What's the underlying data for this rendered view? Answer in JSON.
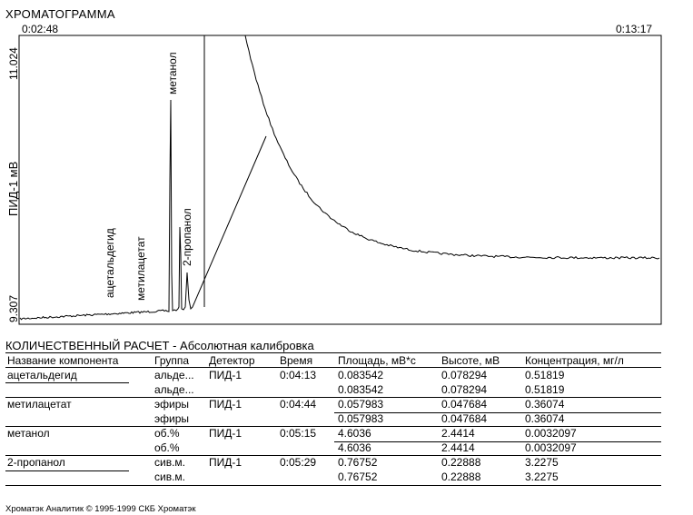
{
  "header": {
    "title": "ХРОМАТОГРАММА",
    "time_start": "0:02:48",
    "time_end": "0:13:17"
  },
  "chart_data": {
    "type": "line",
    "ylabel": "ПИД-1 мВ",
    "ylim": [
      "9.307",
      "11.024"
    ],
    "x_range": [
      "0:02:48",
      "0:13:17"
    ],
    "peak_labels": [
      "ацетальдегид",
      "метилацетат",
      "метанол",
      "2-пропанол"
    ]
  },
  "section": {
    "title": "КОЛИЧЕСТВЕННЫЙ РАСЧЕТ - Абсолютная калибровка"
  },
  "table": {
    "headers": [
      "Название компонента",
      "Группа",
      "Детектор",
      "Время",
      "Площадь, мВ*с",
      "Высоте, мВ",
      "Концентрация, мг/л"
    ],
    "rows": [
      [
        "ацетальдегид",
        "альде...",
        "ПИД-1",
        "0:04:13",
        "0.083542",
        "0.078294",
        "0.51819"
      ],
      [
        "",
        "альде...",
        "",
        "",
        "0.083542",
        "0.078294",
        "0.51819"
      ],
      [
        "метилацетат",
        "эфиры",
        "ПИД-1",
        "0:04:44",
        "0.057983",
        "0.047684",
        "0.36074"
      ],
      [
        "",
        "эфиры",
        "",
        "",
        "0.057983",
        "0.047684",
        "0.36074"
      ],
      [
        "метанол",
        "об.%",
        "ПИД-1",
        "0:05:15",
        "4.6036",
        "2.4414",
        "0.0032097"
      ],
      [
        "",
        "об.%",
        "",
        "",
        "4.6036",
        "2.4414",
        "0.0032097"
      ],
      [
        "2-пропанол",
        "сив.м.",
        "ПИД-1",
        "0:05:29",
        "0.76752",
        "0.22888",
        "3.2275"
      ],
      [
        "",
        "сив.м.",
        "",
        "",
        "0.76752",
        "0.22888",
        "3.2275"
      ]
    ]
  },
  "footer": {
    "text": "Хроматэк Аналитик   © 1995-1999 СКБ Хроматэк"
  }
}
